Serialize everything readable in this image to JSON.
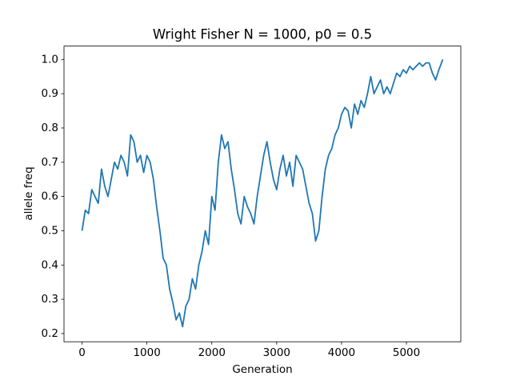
{
  "chart_data": {
    "type": "line",
    "title": "Wright Fisher N = 1000, p0 = 0.5",
    "x_label": "Generation",
    "y_label": "allele freq",
    "color": "#1f77b4",
    "x": [
      0,
      50,
      100,
      150,
      200,
      250,
      300,
      350,
      400,
      450,
      500,
      550,
      600,
      650,
      700,
      750,
      800,
      850,
      900,
      950,
      1000,
      1050,
      1100,
      1150,
      1200,
      1250,
      1300,
      1350,
      1400,
      1450,
      1500,
      1550,
      1600,
      1650,
      1700,
      1750,
      1800,
      1850,
      1900,
      1950,
      2000,
      2050,
      2100,
      2150,
      2200,
      2250,
      2300,
      2350,
      2400,
      2450,
      2500,
      2550,
      2600,
      2650,
      2700,
      2750,
      2800,
      2850,
      2900,
      2950,
      3000,
      3050,
      3100,
      3150,
      3200,
      3250,
      3300,
      3350,
      3400,
      3450,
      3500,
      3550,
      3600,
      3650,
      3700,
      3750,
      3800,
      3850,
      3900,
      3950,
      4000,
      4050,
      4100,
      4150,
      4200,
      4250,
      4300,
      4350,
      4400,
      4450,
      4500,
      4550,
      4600,
      4650,
      4700,
      4750,
      4800,
      4850,
      4900,
      4950,
      5000,
      5050,
      5100,
      5150,
      5200,
      5250,
      5300,
      5350,
      5400,
      5450,
      5500,
      5560
    ],
    "values": [
      0.5,
      0.56,
      0.55,
      0.62,
      0.6,
      0.58,
      0.68,
      0.63,
      0.6,
      0.65,
      0.7,
      0.68,
      0.72,
      0.7,
      0.66,
      0.78,
      0.76,
      0.7,
      0.72,
      0.67,
      0.72,
      0.7,
      0.65,
      0.57,
      0.5,
      0.42,
      0.4,
      0.33,
      0.29,
      0.24,
      0.26,
      0.22,
      0.28,
      0.3,
      0.36,
      0.33,
      0.4,
      0.44,
      0.5,
      0.46,
      0.6,
      0.56,
      0.7,
      0.78,
      0.74,
      0.76,
      0.68,
      0.62,
      0.55,
      0.52,
      0.6,
      0.57,
      0.55,
      0.52,
      0.6,
      0.66,
      0.72,
      0.76,
      0.7,
      0.65,
      0.62,
      0.68,
      0.72,
      0.66,
      0.7,
      0.63,
      0.72,
      0.7,
      0.68,
      0.63,
      0.58,
      0.55,
      0.47,
      0.5,
      0.6,
      0.68,
      0.72,
      0.74,
      0.78,
      0.8,
      0.84,
      0.86,
      0.85,
      0.8,
      0.87,
      0.84,
      0.88,
      0.86,
      0.9,
      0.95,
      0.9,
      0.92,
      0.94,
      0.9,
      0.92,
      0.9,
      0.93,
      0.96,
      0.95,
      0.97,
      0.96,
      0.98,
      0.97,
      0.98,
      0.99,
      0.98,
      0.99,
      0.99,
      0.96,
      0.94,
      0.97,
      1.0
    ],
    "xlim": [
      -278,
      5838
    ],
    "xticks": [
      0,
      1000,
      2000,
      3000,
      4000,
      5000
    ],
    "ylim": [
      0.176,
      1.039
    ],
    "yticks": [
      0.2,
      0.3,
      0.4,
      0.5,
      0.6,
      0.7,
      0.8,
      0.9,
      {
        "value": 1,
        "label": "1.0"
      }
    ]
  }
}
